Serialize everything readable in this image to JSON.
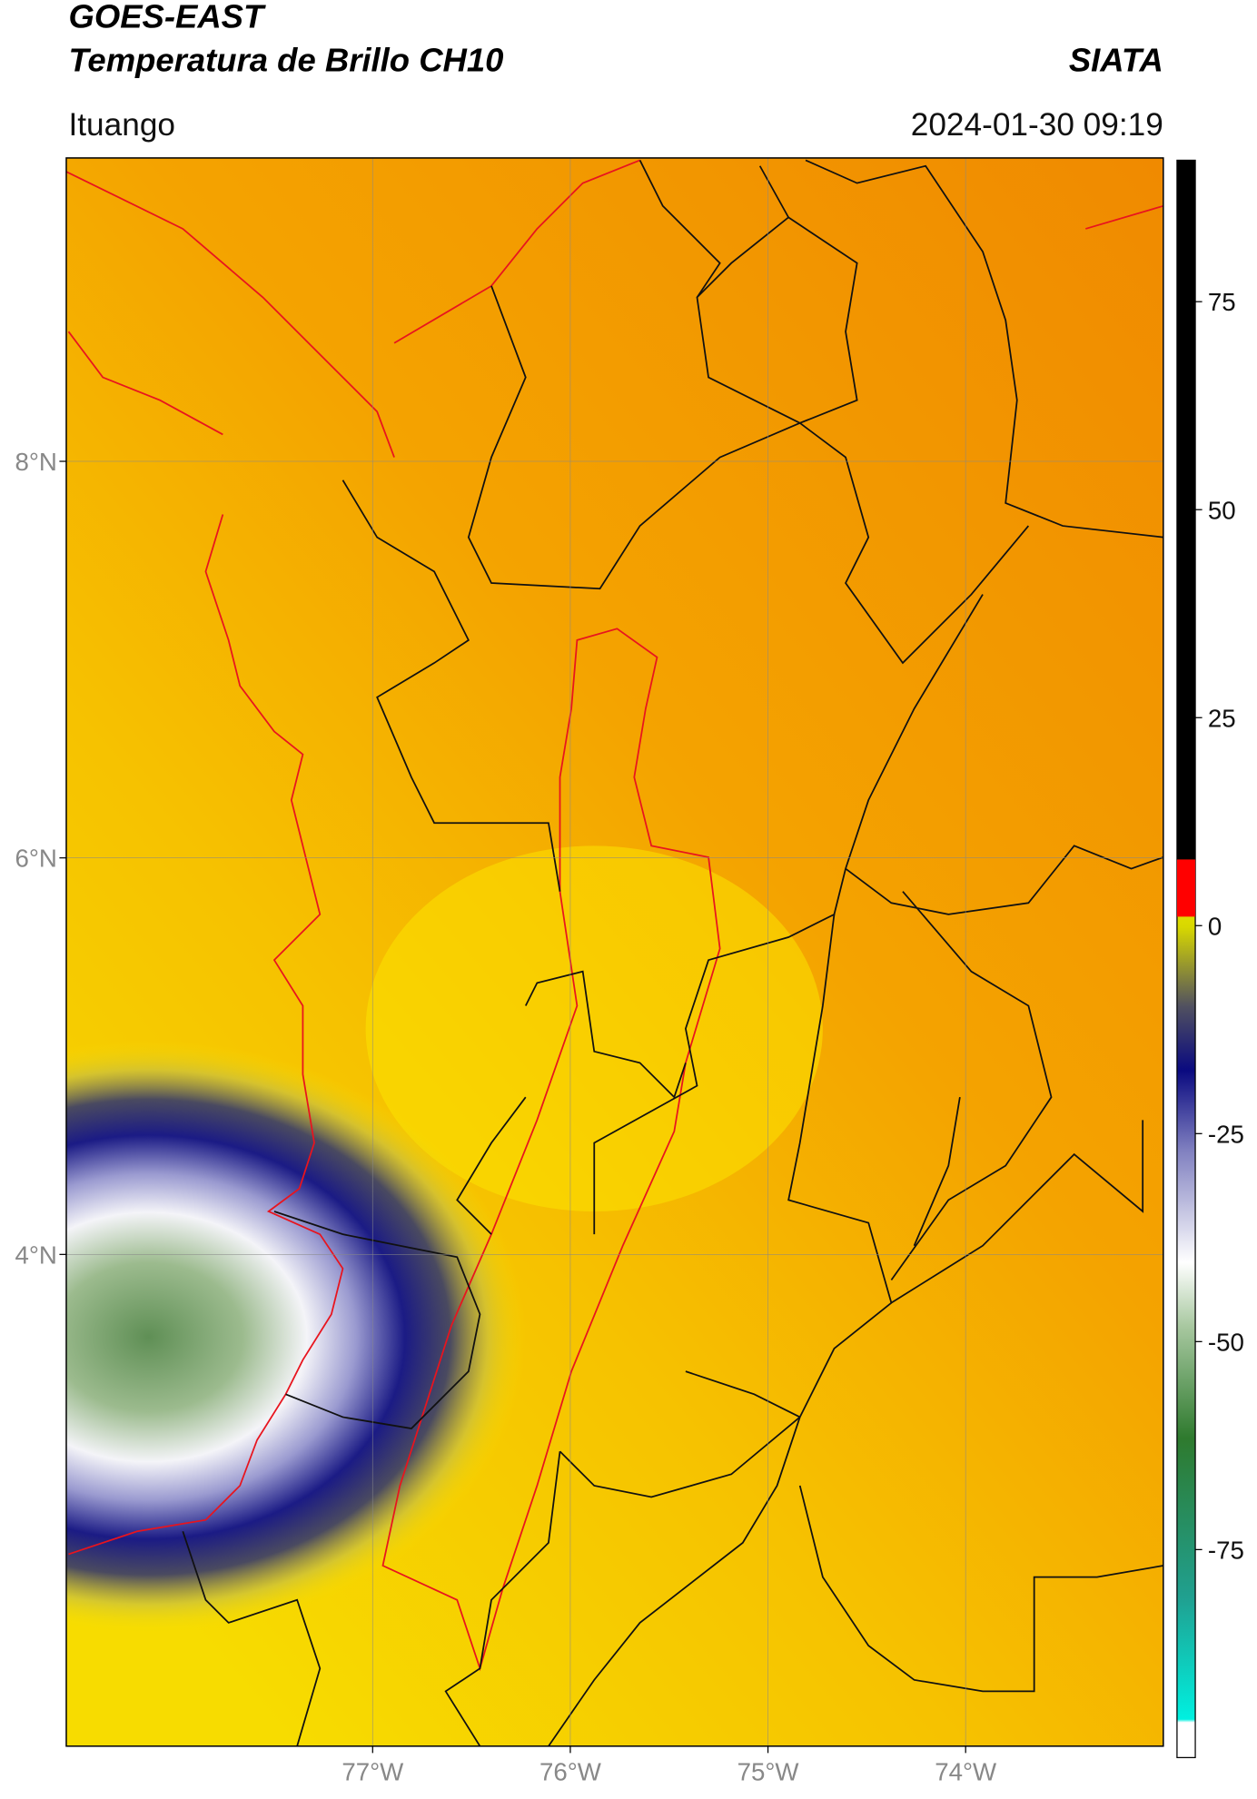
{
  "header": {
    "title": "GOES-EAST",
    "subtitle": "Temperatura de Brillo CH10",
    "source": "SIATA",
    "location": "Ituango",
    "datetime": "2024-01-30 09:19"
  },
  "map": {
    "xlim": [
      -78.55,
      -73.0
    ],
    "ylim": [
      1.52,
      9.53
    ],
    "xticks": [
      {
        "value": -77,
        "label": "77°W"
      },
      {
        "value": -76,
        "label": "76°W"
      },
      {
        "value": -75,
        "label": "75°W"
      },
      {
        "value": -74,
        "label": "74°W"
      }
    ],
    "yticks": [
      {
        "value": 8,
        "label": "8°N"
      },
      {
        "value": 6,
        "label": "6°N"
      },
      {
        "value": 4,
        "label": "4°N"
      }
    ],
    "grid": true
  },
  "colorbar": {
    "lim": [
      -100,
      92
    ],
    "ticks": [
      75,
      50,
      25,
      0,
      -25,
      -50,
      -75
    ]
  }
}
